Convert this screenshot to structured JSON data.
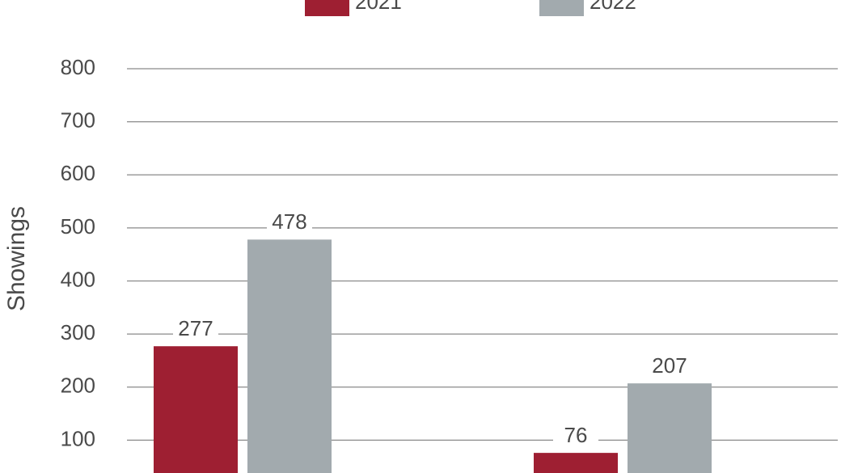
{
  "chart_data": {
    "type": "bar",
    "y_label": "Showings",
    "categories": [
      null,
      null
    ],
    "series": [
      {
        "name": "2021",
        "color": "#9e1f32",
        "values": [
          277,
          76
        ]
      },
      {
        "name": "2022",
        "color": "#a2aaae",
        "values": [
          478,
          207
        ]
      }
    ],
    "ylim": [
      0,
      800
    ],
    "yticks": [
      100,
      200,
      300,
      400,
      500,
      600,
      700,
      800
    ],
    "grid": true
  }
}
